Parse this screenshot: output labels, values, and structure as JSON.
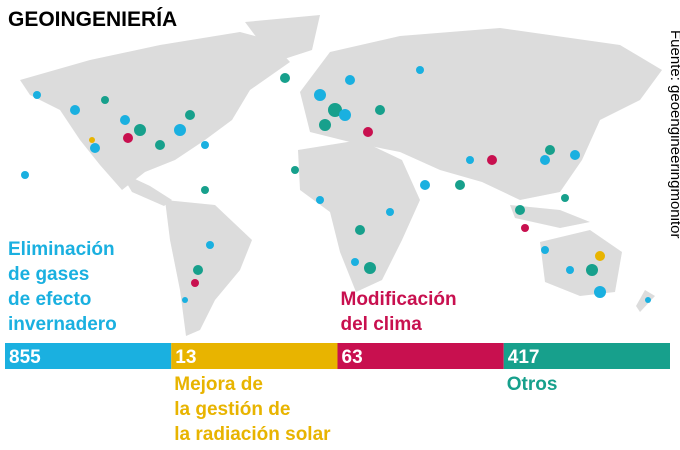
{
  "header": {
    "title": "GEOINGENIERÍA"
  },
  "source": "Fuente: geoengineeringmonitor",
  "categories": [
    {
      "label": [
        "Eliminación",
        "de gases",
        "de efecto",
        "invernadero"
      ],
      "count": "855",
      "color": "#1ab0e0"
    },
    {
      "label": [
        "Mejora de",
        "la gestión de",
        "la radiación solar"
      ],
      "count": "13",
      "color": "#e8b400"
    },
    {
      "label": [
        "Modificación",
        "del clima"
      ],
      "count": "63",
      "color": "#c8104f"
    },
    {
      "label": [
        "Otros"
      ],
      "count": "417",
      "color": "#17a08c"
    }
  ]
}
